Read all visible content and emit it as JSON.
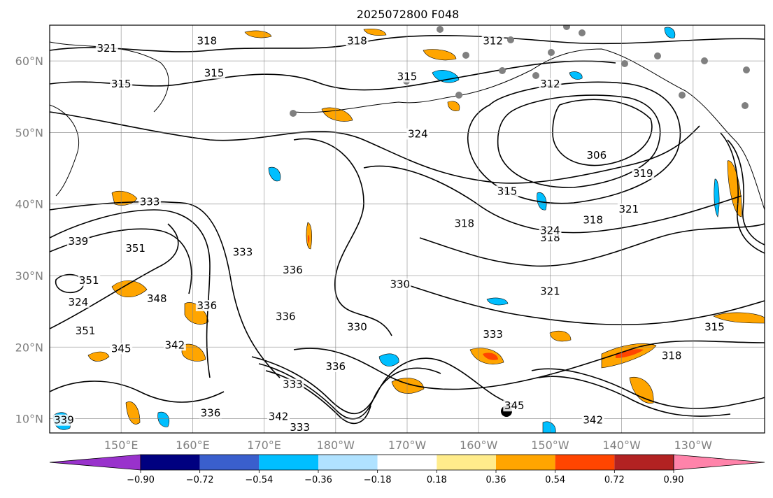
{
  "chart_data": {
    "type": "map",
    "title": "2025072800 F048",
    "projection": "PlateCarree",
    "extent": {
      "lon": [
        140,
        240
      ],
      "lat": [
        8,
        65
      ]
    },
    "x_ticks": [
      {
        "lon": 150,
        "label": "150°E"
      },
      {
        "lon": 160,
        "label": "160°E"
      },
      {
        "lon": 170,
        "label": "170°E"
      },
      {
        "lon": 180,
        "label": "180°W"
      },
      {
        "lon": 190,
        "label": "170°W"
      },
      {
        "lon": 200,
        "label": "160°W"
      },
      {
        "lon": 210,
        "label": "150°W"
      },
      {
        "lon": 220,
        "label": "140°W"
      },
      {
        "lon": 230,
        "label": "130°W"
      }
    ],
    "y_ticks": [
      {
        "lat": 10,
        "label": "10°N"
      },
      {
        "lat": 20,
        "label": "20°N"
      },
      {
        "lat": 30,
        "label": "30°N"
      },
      {
        "lat": 40,
        "label": "40°N"
      },
      {
        "lat": 50,
        "label": "50°N"
      },
      {
        "lat": 60,
        "label": "60°N"
      }
    ],
    "grid": true,
    "contour_labels": [
      {
        "lon": 148,
        "lat": 61.5,
        "text": "321"
      },
      {
        "lon": 162,
        "lat": 62.5,
        "text": "318"
      },
      {
        "lon": 183,
        "lat": 62.5,
        "text": "318"
      },
      {
        "lon": 202,
        "lat": 62.5,
        "text": "312"
      },
      {
        "lon": 190,
        "lat": 57.5,
        "text": "315"
      },
      {
        "lon": 150,
        "lat": 56.5,
        "text": "315"
      },
      {
        "lon": 163,
        "lat": 58,
        "text": "315"
      },
      {
        "lon": 210,
        "lat": 56.5,
        "text": "312"
      },
      {
        "lon": 191.5,
        "lat": 49.5,
        "text": "324"
      },
      {
        "lon": 216.5,
        "lat": 46.5,
        "text": "306"
      },
      {
        "lon": 204,
        "lat": 41.5,
        "text": "315"
      },
      {
        "lon": 223,
        "lat": 44,
        "text": "319"
      },
      {
        "lon": 216,
        "lat": 37.5,
        "text": "318"
      },
      {
        "lon": 221,
        "lat": 39,
        "text": "321"
      },
      {
        "lon": 198,
        "lat": 37,
        "text": "318"
      },
      {
        "lon": 154,
        "lat": 40,
        "text": "333"
      },
      {
        "lon": 144,
        "lat": 34.5,
        "text": "339"
      },
      {
        "lon": 152,
        "lat": 33.5,
        "text": "351"
      },
      {
        "lon": 145.5,
        "lat": 29,
        "text": "351"
      },
      {
        "lon": 144,
        "lat": 26,
        "text": "324"
      },
      {
        "lon": 155,
        "lat": 26.5,
        "text": "348"
      },
      {
        "lon": 145,
        "lat": 22,
        "text": "351"
      },
      {
        "lon": 150,
        "lat": 19.5,
        "text": "345"
      },
      {
        "lon": 167,
        "lat": 33,
        "text": "333"
      },
      {
        "lon": 174,
        "lat": 30.5,
        "text": "336"
      },
      {
        "lon": 162,
        "lat": 25.5,
        "text": "336"
      },
      {
        "lon": 173,
        "lat": 24,
        "text": "336"
      },
      {
        "lon": 183,
        "lat": 22.5,
        "text": "330"
      },
      {
        "lon": 189,
        "lat": 28.5,
        "text": "330"
      },
      {
        "lon": 157.5,
        "lat": 20,
        "text": "342"
      },
      {
        "lon": 180,
        "lat": 17,
        "text": "336"
      },
      {
        "lon": 174,
        "lat": 14.5,
        "text": "333"
      },
      {
        "lon": 162.5,
        "lat": 10.5,
        "text": "336"
      },
      {
        "lon": 172,
        "lat": 10,
        "text": "342"
      },
      {
        "lon": 175,
        "lat": 8.5,
        "text": "333"
      },
      {
        "lon": 142,
        "lat": 9.5,
        "text": "339"
      },
      {
        "lon": 202,
        "lat": 21.5,
        "text": "333"
      },
      {
        "lon": 205,
        "lat": 11.5,
        "text": "345"
      },
      {
        "lon": 216,
        "lat": 9.5,
        "text": "342"
      },
      {
        "lon": 210,
        "lat": 35,
        "text": "318"
      },
      {
        "lon": 210,
        "lat": 36,
        "text": "324"
      },
      {
        "lon": 210,
        "lat": 27.5,
        "text": "321"
      },
      {
        "lon": 233,
        "lat": 22.5,
        "text": "315"
      },
      {
        "lon": 227,
        "lat": 18.5,
        "text": "318"
      }
    ],
    "colorbar": {
      "ticks": [
        "−0.90",
        "−0.72",
        "−0.54",
        "−0.36",
        "−0.18",
        "0.18",
        "0.36",
        "0.54",
        "0.72",
        "0.90"
      ],
      "colors": {
        "under": "#9932cc",
        "bins": [
          "#000080",
          "#3a5fcd",
          "#00bfff",
          "#b0e2ff",
          "#ffffff",
          "#ffec8b",
          "#ffa500",
          "#ff4500",
          "#b22222"
        ],
        "over": "#ff83aa"
      },
      "tick_values": [
        -0.9,
        -0.72,
        -0.54,
        -0.36,
        -0.18,
        0.18,
        0.36,
        0.54,
        0.72,
        0.9
      ],
      "extend": "both"
    }
  }
}
